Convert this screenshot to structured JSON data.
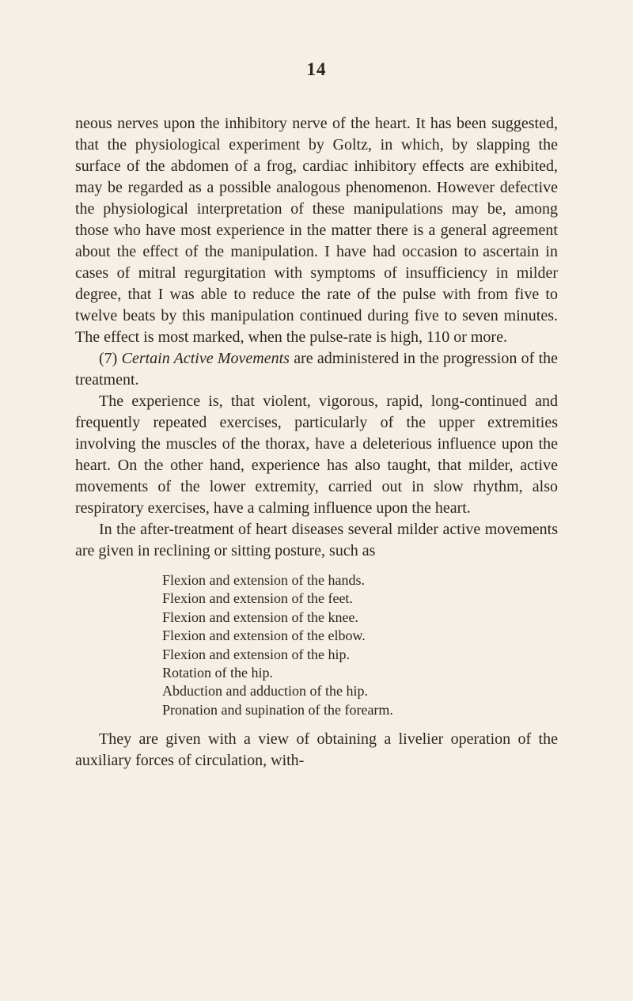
{
  "page_number": "14",
  "para1": "neous nerves upon the inhibitory nerve of the heart. It has been suggested, that the physiological experi­ment by Goltz, in which, by slapping the surface of the abdomen of a frog, cardiac inhibitory effects are exhibited, may be regarded as a possible analogous phenomenon. However defective the physiological interpretation of these manipulations may be, among those who have most experience in the matter there is a general agreement about the effect of the manipu­lation. I have had occasion to ascertain in cases of mitral regurgitation with symptoms of insufficiency in milder degree, that I was able to reduce the rate of the pulse with from five to twelve beats by this manipulation continued during five to seven minutes. The effect is most marked, when the pulse-rate is high, 110 or more.",
  "para2_prefix": "(7) ",
  "para2_italic": "Certain Active Movements",
  "para2_suffix": " are administered in the progression of the treatment.",
  "para3": "The experience is, that violent, vigorous, rapid, long-continued and frequently repeated exercises, particularly of the upper extremities involving the muscles of the thorax, have a deleterious influence upon the heart. On the other hand, experience has also taught, that milder, active movements of the lower extremity, carried out in slow rhythm, also respiratory exercises, have a calming influence upon the heart.",
  "para4": "In the after-treatment of heart diseases several milder active movements are given in reclining or sit­ting posture, such as",
  "list": [
    "Flexion and extension of the hands.",
    "Flexion and extension of the feet.",
    "Flexion and extension of the knee.",
    "Flexion and extension of the elbow.",
    "Flexion and extension of the hip.",
    "Rotation of the hip.",
    "Abduction and adduction of the hip.",
    "Pronation and supination of the forearm."
  ],
  "para5": "They are given with a view of obtaining a livelier operation of the auxiliary forces of circulation, with-",
  "style": {
    "background": "#f5f0e6",
    "text_color": "#2a2520",
    "body_fontsize": 20,
    "list_fontsize": 18,
    "pagenum_fontsize": 23
  }
}
